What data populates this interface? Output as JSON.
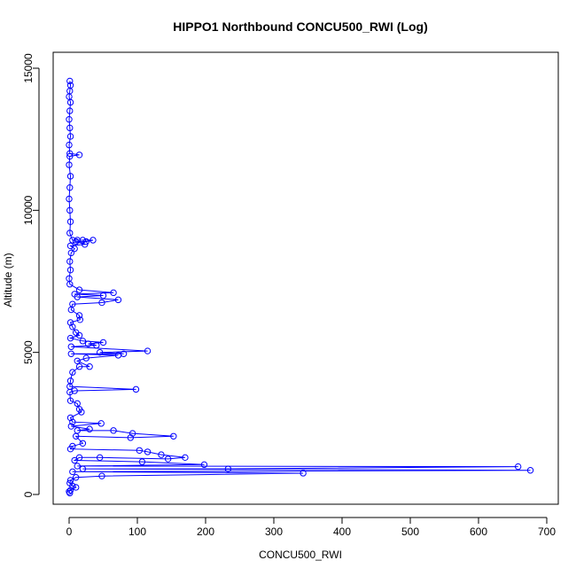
{
  "chart_data": {
    "type": "line",
    "title": "HIPPO1 Northbound CONCU500_RWI (Log)",
    "xlabel": "CONCU500_RWI",
    "ylabel": "Altitude (m)",
    "xlim": [
      0,
      700
    ],
    "ylim": [
      0,
      15000
    ],
    "xticks": [
      0,
      100,
      200,
      300,
      400,
      500,
      600,
      700
    ],
    "yticks": [
      0,
      5000,
      10000,
      15000
    ],
    "grid": false,
    "legend": "none",
    "series_color": "#0000ff",
    "series": [
      {
        "points": [
          [
            1,
            14550
          ],
          [
            2,
            14400
          ],
          [
            1,
            14200
          ],
          [
            0,
            14000
          ],
          [
            2,
            13800
          ],
          [
            1,
            13500
          ],
          [
            0,
            13200
          ],
          [
            1,
            12900
          ],
          [
            2,
            12600
          ],
          [
            0,
            12300
          ],
          [
            1,
            12000
          ],
          [
            15,
            11950
          ],
          [
            1,
            11900
          ],
          [
            0,
            11600
          ],
          [
            2,
            11200
          ],
          [
            1,
            10800
          ],
          [
            0,
            10400
          ],
          [
            1,
            10000
          ],
          [
            2,
            9600
          ],
          [
            1,
            9200
          ],
          [
            5,
            8950
          ],
          [
            12,
            8950
          ],
          [
            20,
            8950
          ],
          [
            35,
            8950
          ],
          [
            25,
            8900
          ],
          [
            10,
            8900
          ],
          [
            23,
            8800
          ],
          [
            2,
            8750
          ],
          [
            8,
            8650
          ],
          [
            3,
            8500
          ],
          [
            1,
            8200
          ],
          [
            2,
            7900
          ],
          [
            0,
            7600
          ],
          [
            1,
            7400
          ],
          [
            15,
            7200
          ],
          [
            65,
            7100
          ],
          [
            8,
            7050
          ],
          [
            50,
            7000
          ],
          [
            12,
            6950
          ],
          [
            72,
            6850
          ],
          [
            48,
            6750
          ],
          [
            5,
            6700
          ],
          [
            3,
            6500
          ],
          [
            15,
            6300
          ],
          [
            16,
            6150
          ],
          [
            2,
            6050
          ],
          [
            5,
            5900
          ],
          [
            10,
            5700
          ],
          [
            15,
            5600
          ],
          [
            2,
            5500
          ],
          [
            20,
            5400
          ],
          [
            50,
            5350
          ],
          [
            28,
            5300
          ],
          [
            40,
            5250
          ],
          [
            3,
            5200
          ],
          [
            115,
            5050
          ],
          [
            45,
            5000
          ],
          [
            80,
            4950
          ],
          [
            3,
            4950
          ],
          [
            72,
            4900
          ],
          [
            25,
            4800
          ],
          [
            12,
            4700
          ],
          [
            30,
            4500
          ],
          [
            15,
            4500
          ],
          [
            5,
            4300
          ],
          [
            2,
            4000
          ],
          [
            1,
            3800
          ],
          [
            98,
            3700
          ],
          [
            8,
            3650
          ],
          [
            1,
            3600
          ],
          [
            2,
            3300
          ],
          [
            12,
            3200
          ],
          [
            15,
            3000
          ],
          [
            18,
            2900
          ],
          [
            2,
            2700
          ],
          [
            5,
            2550
          ],
          [
            47,
            2500
          ],
          [
            3,
            2400
          ],
          [
            30,
            2300
          ],
          [
            12,
            2250
          ],
          [
            65,
            2250
          ],
          [
            93,
            2150
          ],
          [
            153,
            2050
          ],
          [
            90,
            2000
          ],
          [
            10,
            2050
          ],
          [
            20,
            1800
          ],
          [
            5,
            1700
          ],
          [
            2,
            1600
          ],
          [
            103,
            1550
          ],
          [
            115,
            1500
          ],
          [
            135,
            1400
          ],
          [
            170,
            1300
          ],
          [
            145,
            1250
          ],
          [
            45,
            1300
          ],
          [
            15,
            1300
          ],
          [
            8,
            1200
          ],
          [
            107,
            1150
          ],
          [
            198,
            1050
          ],
          [
            12,
            1000
          ],
          [
            658,
            980
          ],
          [
            233,
            900
          ],
          [
            20,
            900
          ],
          [
            676,
            850
          ],
          [
            5,
            800
          ],
          [
            343,
            750
          ],
          [
            48,
            650
          ],
          [
            10,
            600
          ],
          [
            2,
            500
          ],
          [
            1,
            400
          ],
          [
            5,
            300
          ],
          [
            10,
            250
          ],
          [
            2,
            150
          ],
          [
            0,
            100
          ],
          [
            1,
            50
          ]
        ]
      }
    ]
  }
}
